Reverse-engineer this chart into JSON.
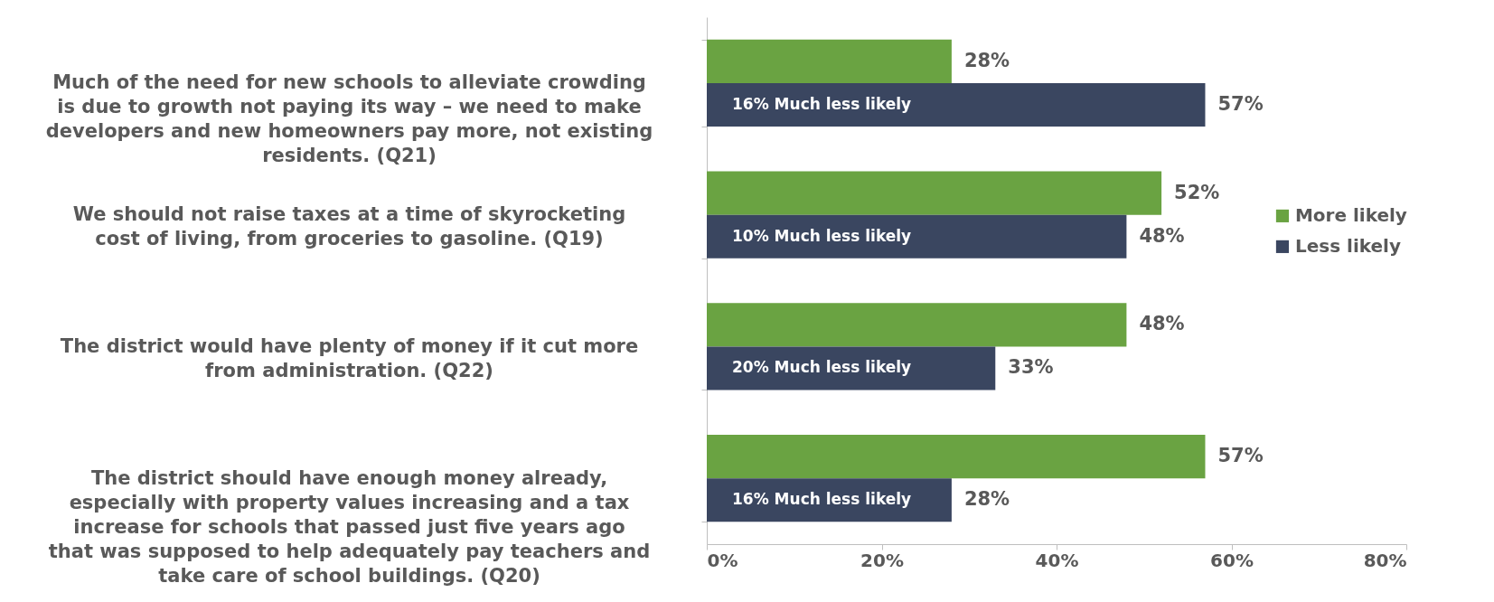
{
  "chart_data": {
    "type": "bar",
    "orientation": "horizontal",
    "categories": [
      "Much of the need for new schools to alleviate crowding is due to growth not paying its way – we need to make developers and new homeowners pay more, not existing residents. (Q21)",
      "We should not raise taxes at a time of skyrocketing cost of living, from groceries to gasoline. (Q19)",
      "The district would have plenty of money if it cut more from administration. (Q22)",
      "The district should have enough money already, especially with property values increasing and a tax increase for schools that passed just five years ago that was supposed to help adequately pay teachers and take care of school buildings. (Q20)"
    ],
    "series": [
      {
        "name": "More likely",
        "color": "#6aa342",
        "values": [
          28,
          52,
          48,
          57
        ],
        "value_labels": [
          "28%",
          "52%",
          "48%",
          "57%"
        ]
      },
      {
        "name": "Less likely",
        "color": "#3a4660",
        "values": [
          57,
          48,
          33,
          28
        ],
        "value_labels": [
          "57%",
          "48%",
          "33%",
          "28%"
        ]
      }
    ],
    "xlim": [
      0,
      80
    ],
    "xticks": [
      {
        "value": 0,
        "label": "0%"
      },
      {
        "value": 20,
        "label": "20%"
      },
      {
        "value": 40,
        "label": "40%"
      },
      {
        "value": 60,
        "label": "60%"
      },
      {
        "value": 80,
        "label": "80%"
      }
    ],
    "annotations": [
      "16% Much less likely",
      "10% Much less likely",
      "20% Much less likely",
      "16% Much less likely"
    ],
    "legend": "right",
    "grid": false
  }
}
